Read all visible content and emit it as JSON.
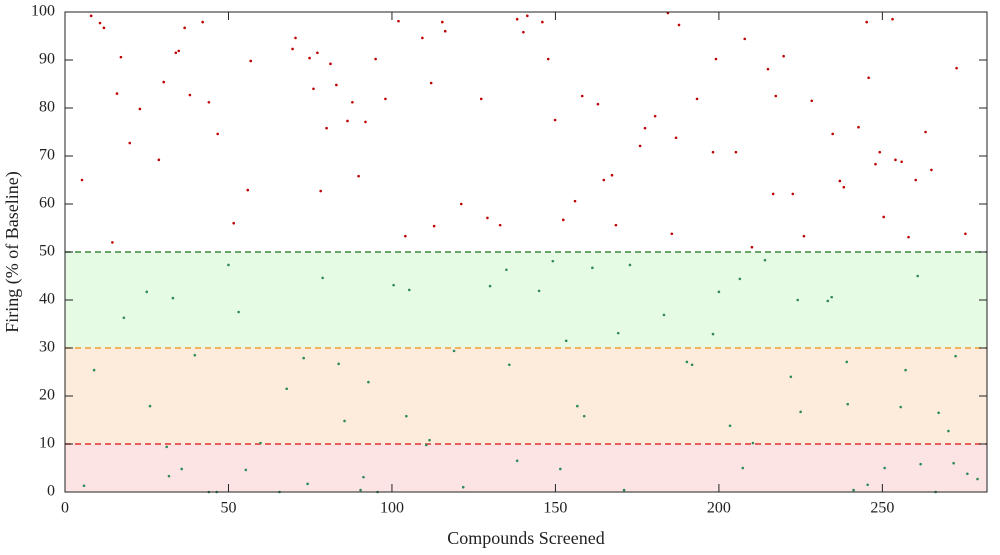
{
  "chart_data": {
    "type": "scatter",
    "xlabel": "Compounds Screened",
    "ylabel": "Firing (% of Baseline)",
    "xlim": [
      0,
      282
    ],
    "ylim": [
      0,
      100
    ],
    "xticks": [
      0,
      50,
      100,
      150,
      200,
      250
    ],
    "yticks": [
      0,
      10,
      20,
      30,
      40,
      50,
      60,
      70,
      80,
      90,
      100
    ],
    "bands": [
      {
        "from": 0,
        "to": 10,
        "color": "#fce4e4"
      },
      {
        "from": 10,
        "to": 30,
        "color": "#fdecdb"
      },
      {
        "from": 30,
        "to": 50,
        "color": "#e6fbe3"
      }
    ],
    "thresholds": [
      {
        "value": 10,
        "color": "#e03030"
      },
      {
        "value": 30,
        "color": "#f0a030"
      },
      {
        "value": 50,
        "color": "#3a8a3a"
      }
    ],
    "series": [
      {
        "color": "#c00000",
        "x": [
          5.2,
          8,
          10.7,
          11.9,
          14.5,
          15.9,
          17.1,
          19.8,
          22.9,
          28.7,
          30.2,
          33.9,
          34.8,
          36.6,
          38.2,
          42.1,
          44,
          46.7,
          51.6,
          55.9,
          56.8,
          69.6,
          70.5,
          74.8,
          76,
          77.2,
          78.2,
          80,
          81.2,
          83,
          86.4,
          87.9,
          89.8,
          91.9,
          95,
          98,
          102,
          104.1,
          109.3,
          112,
          112.9,
          115.4,
          116.3,
          121.2,
          127.3,
          129.2,
          133.1,
          138.3,
          140.2,
          141.4,
          146,
          147.8,
          149.9,
          152.4,
          156,
          158.2,
          163,
          164.8,
          167.3,
          168.5,
          175.9,
          177.4,
          180.5,
          184.4,
          185.6,
          186.9,
          187.8,
          193.3,
          198.2,
          199.1,
          205.2,
          207.9,
          210.1,
          215,
          216.6,
          217.4,
          219.8,
          222.6,
          226,
          228.4,
          234.8,
          237,
          238.2,
          242.7,
          245.2,
          245.8,
          247.9,
          249.2,
          250.4,
          253.1,
          254,
          255.9,
          258,
          260.2,
          263.2,
          265,
          272.7,
          275.4
        ],
        "values": [
          65,
          99.2,
          97.7,
          96.7,
          52,
          83,
          90.6,
          72.7,
          79.8,
          69.2,
          85.4,
          91.5,
          91.9,
          96.7,
          82.7,
          97.9,
          81.2,
          74.6,
          56,
          62.9,
          89.8,
          92.3,
          94.6,
          90.4,
          84,
          91.5,
          62.7,
          75.8,
          89.2,
          84.8,
          77.3,
          81.2,
          65.8,
          77.1,
          90.2,
          81.9,
          98.1,
          53.3,
          94.6,
          85.2,
          55.4,
          97.9,
          96,
          60,
          81.9,
          57.1,
          55.6,
          98.5,
          95.8,
          99.2,
          97.9,
          90.2,
          77.5,
          56.7,
          60.6,
          82.5,
          80.8,
          65,
          66,
          55.6,
          72.1,
          75.8,
          78.3,
          99.8,
          53.8,
          73.8,
          97.3,
          81.9,
          70.8,
          90.2,
          70.8,
          94.4,
          51,
          88.1,
          62.1,
          82.5,
          90.8,
          62.1,
          53.3,
          81.5,
          74.6,
          64.8,
          63.5,
          76,
          97.9,
          86.3,
          68.3,
          70.8,
          57.3,
          98.5,
          69.2,
          68.8,
          53.1,
          65,
          75,
          67.1,
          88.3,
          53.8
        ]
      },
      {
        "color": "#2e8b57",
        "x": [
          5.8,
          8.9,
          18,
          25,
          26,
          31.1,
          31.8,
          33,
          35.7,
          39.7,
          44,
          46.4,
          50,
          53.1,
          55.3,
          59.8,
          65.6,
          67.8,
          73,
          74.2,
          78.8,
          83.7,
          85.5,
          90.4,
          91.3,
          92.8,
          95.6,
          100.5,
          104.4,
          105.3,
          110.5,
          111.5,
          119,
          121.8,
          130,
          135,
          135.9,
          138.3,
          145,
          149.2,
          151.5,
          153.3,
          156.7,
          158.8,
          161.3,
          169.2,
          171,
          172.8,
          183.2,
          190.2,
          191.8,
          198.2,
          200,
          203.4,
          206.4,
          207.3,
          210.4,
          214.1,
          222,
          224.1,
          225,
          233.3,
          234.5,
          239.1,
          239.4,
          241.2,
          245.5,
          250.7,
          255.6,
          257.1,
          260.8,
          261.7,
          266.3,
          267.2,
          270.2,
          271.8,
          272.4,
          276,
          279.1
        ],
        "values": [
          1.3,
          25.4,
          36.3,
          41.7,
          17.9,
          9.4,
          3.3,
          40.4,
          4.8,
          28.5,
          0,
          0,
          47.3,
          37.5,
          4.6,
          10.2,
          0,
          21.5,
          27.9,
          1.7,
          44.6,
          26.7,
          14.8,
          0.4,
          3.1,
          22.9,
          0,
          43.1,
          15.8,
          42.1,
          9.8,
          10.8,
          29.4,
          1,
          42.9,
          46.3,
          26.5,
          6.5,
          41.9,
          48.1,
          4.8,
          31.5,
          17.9,
          15.8,
          46.7,
          33.1,
          0.4,
          47.3,
          36.9,
          27.1,
          26.5,
          32.9,
          41.7,
          13.8,
          44.4,
          5,
          10.2,
          48.3,
          24,
          40,
          16.7,
          39.8,
          40.6,
          27.1,
          18.3,
          0.4,
          1.5,
          5,
          17.7,
          25.4,
          45,
          5.8,
          0,
          16.5,
          12.7,
          6,
          28.3,
          3.8,
          2.7
        ]
      }
    ]
  }
}
